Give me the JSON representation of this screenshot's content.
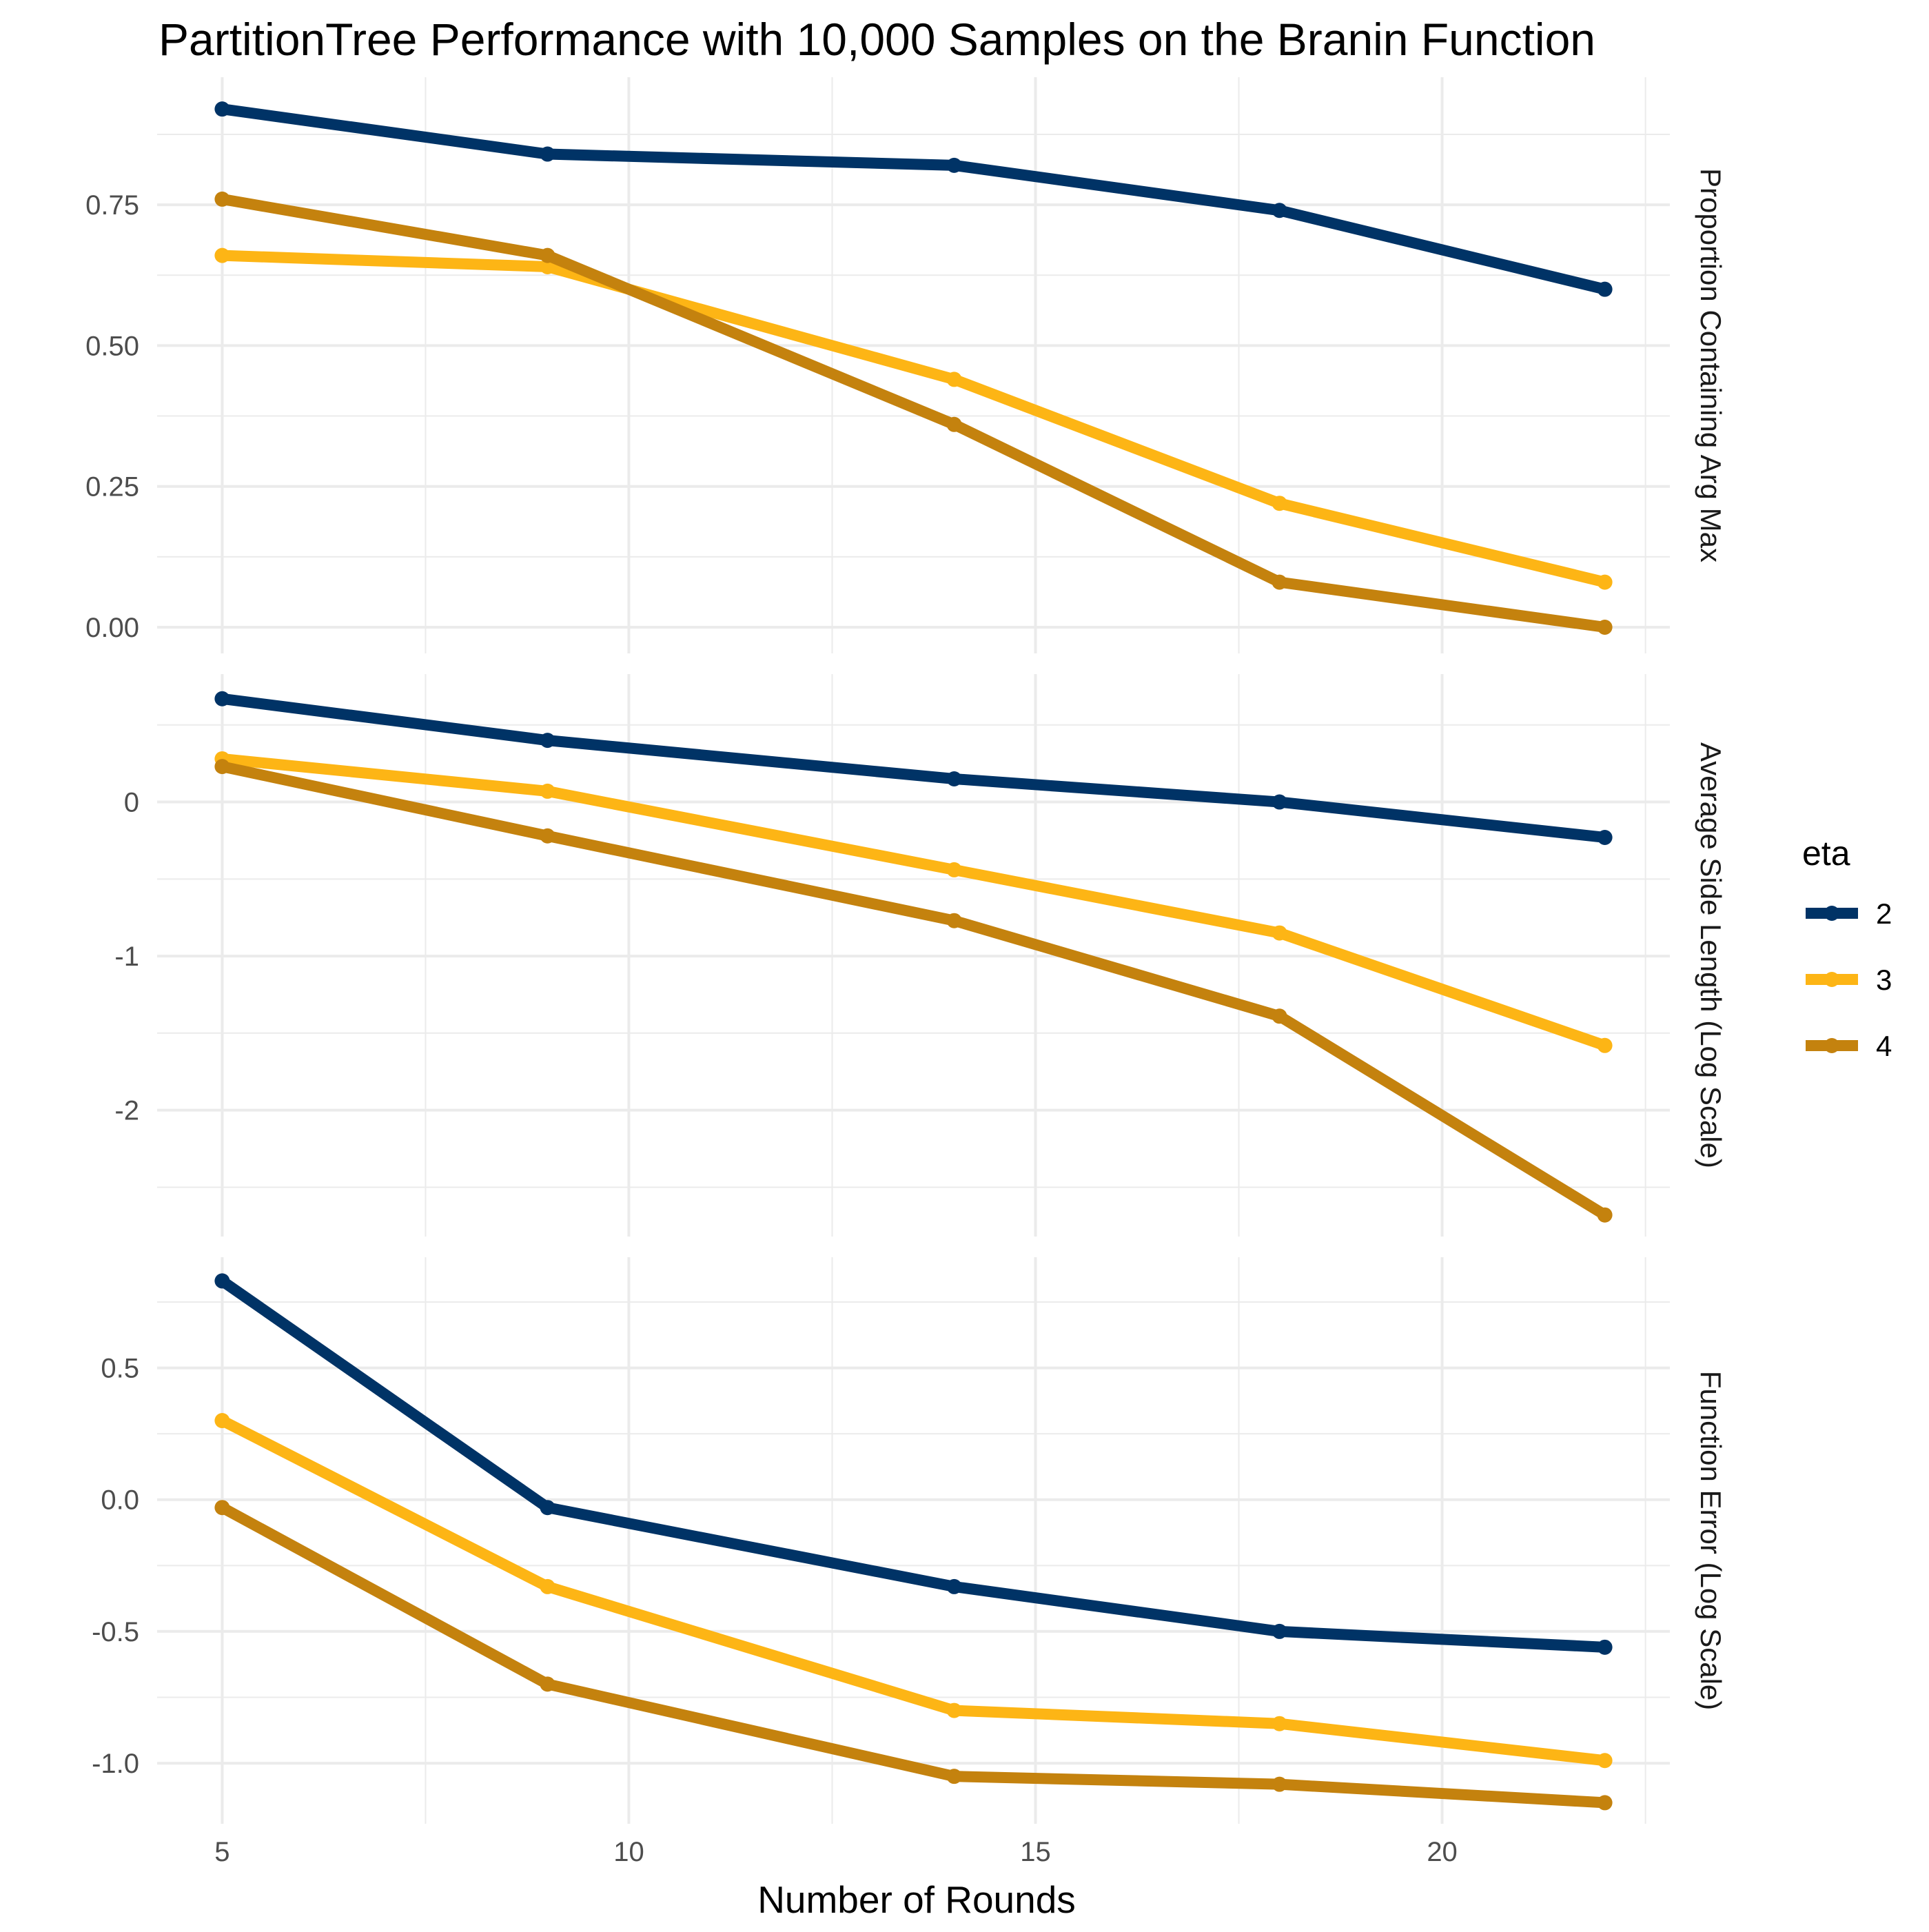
{
  "chart_data": {
    "type": "line",
    "title": "PartitionTree Performance with 10,000 Samples on the Branin Function",
    "xlabel": "Number of Rounds",
    "xlim": [
      4.2,
      22.8
    ],
    "x_ticks": [
      5,
      10,
      15,
      20
    ],
    "x_tick_labels": [
      "5",
      "10",
      "15",
      "20"
    ],
    "x_minor_ticks": [
      7.5,
      12.5,
      17.5,
      22.5
    ],
    "x": [
      5,
      9,
      14,
      18,
      22
    ],
    "grid": true,
    "legend": {
      "title": "eta",
      "position": "right",
      "entries": [
        "2",
        "3",
        "4"
      ]
    },
    "colors": {
      "2": "#003366",
      "3": "#FDB515",
      "4": "#C4820E",
      "grid": "#EBEBEB",
      "text": "#000000",
      "tick_text": "#4D4D4D"
    },
    "panels": [
      {
        "strip_label": "Proportion Containing Arg Max",
        "ylim": [
          -0.0465,
          0.9765
        ],
        "y_ticks": [
          0,
          0.25,
          0.5,
          0.75
        ],
        "y_tick_labels": [
          "0.00",
          "0.25",
          "0.50",
          "0.75"
        ],
        "y_minor_ticks": [
          0.125,
          0.375,
          0.625,
          0.875
        ],
        "series": [
          {
            "name": "2",
            "values": [
              0.92,
              0.84,
              0.82,
              0.74,
              0.6
            ]
          },
          {
            "name": "3",
            "values": [
              0.66,
              0.64,
              0.44,
              0.22,
              0.08
            ]
          },
          {
            "name": "4",
            "values": [
              0.76,
              0.66,
              0.36,
              0.08,
              0.0
            ]
          }
        ]
      },
      {
        "strip_label": "Average Side Length (Log Scale)",
        "ylim": [
          -2.82,
          0.83
        ],
        "y_ticks": [
          -2,
          -1,
          0
        ],
        "y_tick_labels": [
          "-2",
          "-1",
          "0"
        ],
        "y_minor_ticks": [
          -2.5,
          -1.5,
          -0.5,
          0.5
        ],
        "series": [
          {
            "name": "2",
            "values": [
              0.67,
              0.4,
              0.15,
              0.0,
              -0.23
            ]
          },
          {
            "name": "3",
            "values": [
              0.28,
              0.07,
              -0.44,
              -0.85,
              -1.58
            ]
          },
          {
            "name": "4",
            "values": [
              0.23,
              -0.22,
              -0.77,
              -1.39,
              -2.68
            ]
          }
        ]
      },
      {
        "strip_label": "Function Error (Log Scale)",
        "ylim": [
          -1.23,
          0.92
        ],
        "y_ticks": [
          -1.0,
          -0.5,
          0.0,
          0.5
        ],
        "y_tick_labels": [
          "-1.0",
          "-0.5",
          "0.0",
          "0.5"
        ],
        "y_minor_ticks": [
          -0.75,
          -0.25,
          0.25,
          0.75
        ],
        "series": [
          {
            "name": "2",
            "values": [
              0.83,
              -0.03,
              -0.33,
              -0.5,
              -0.56
            ]
          },
          {
            "name": "3",
            "values": [
              0.3,
              -0.33,
              -0.8,
              -0.85,
              -0.99
            ]
          },
          {
            "name": "4",
            "values": [
              -0.03,
              -0.7,
              -1.05,
              -1.08,
              -1.15
            ]
          }
        ]
      }
    ]
  }
}
